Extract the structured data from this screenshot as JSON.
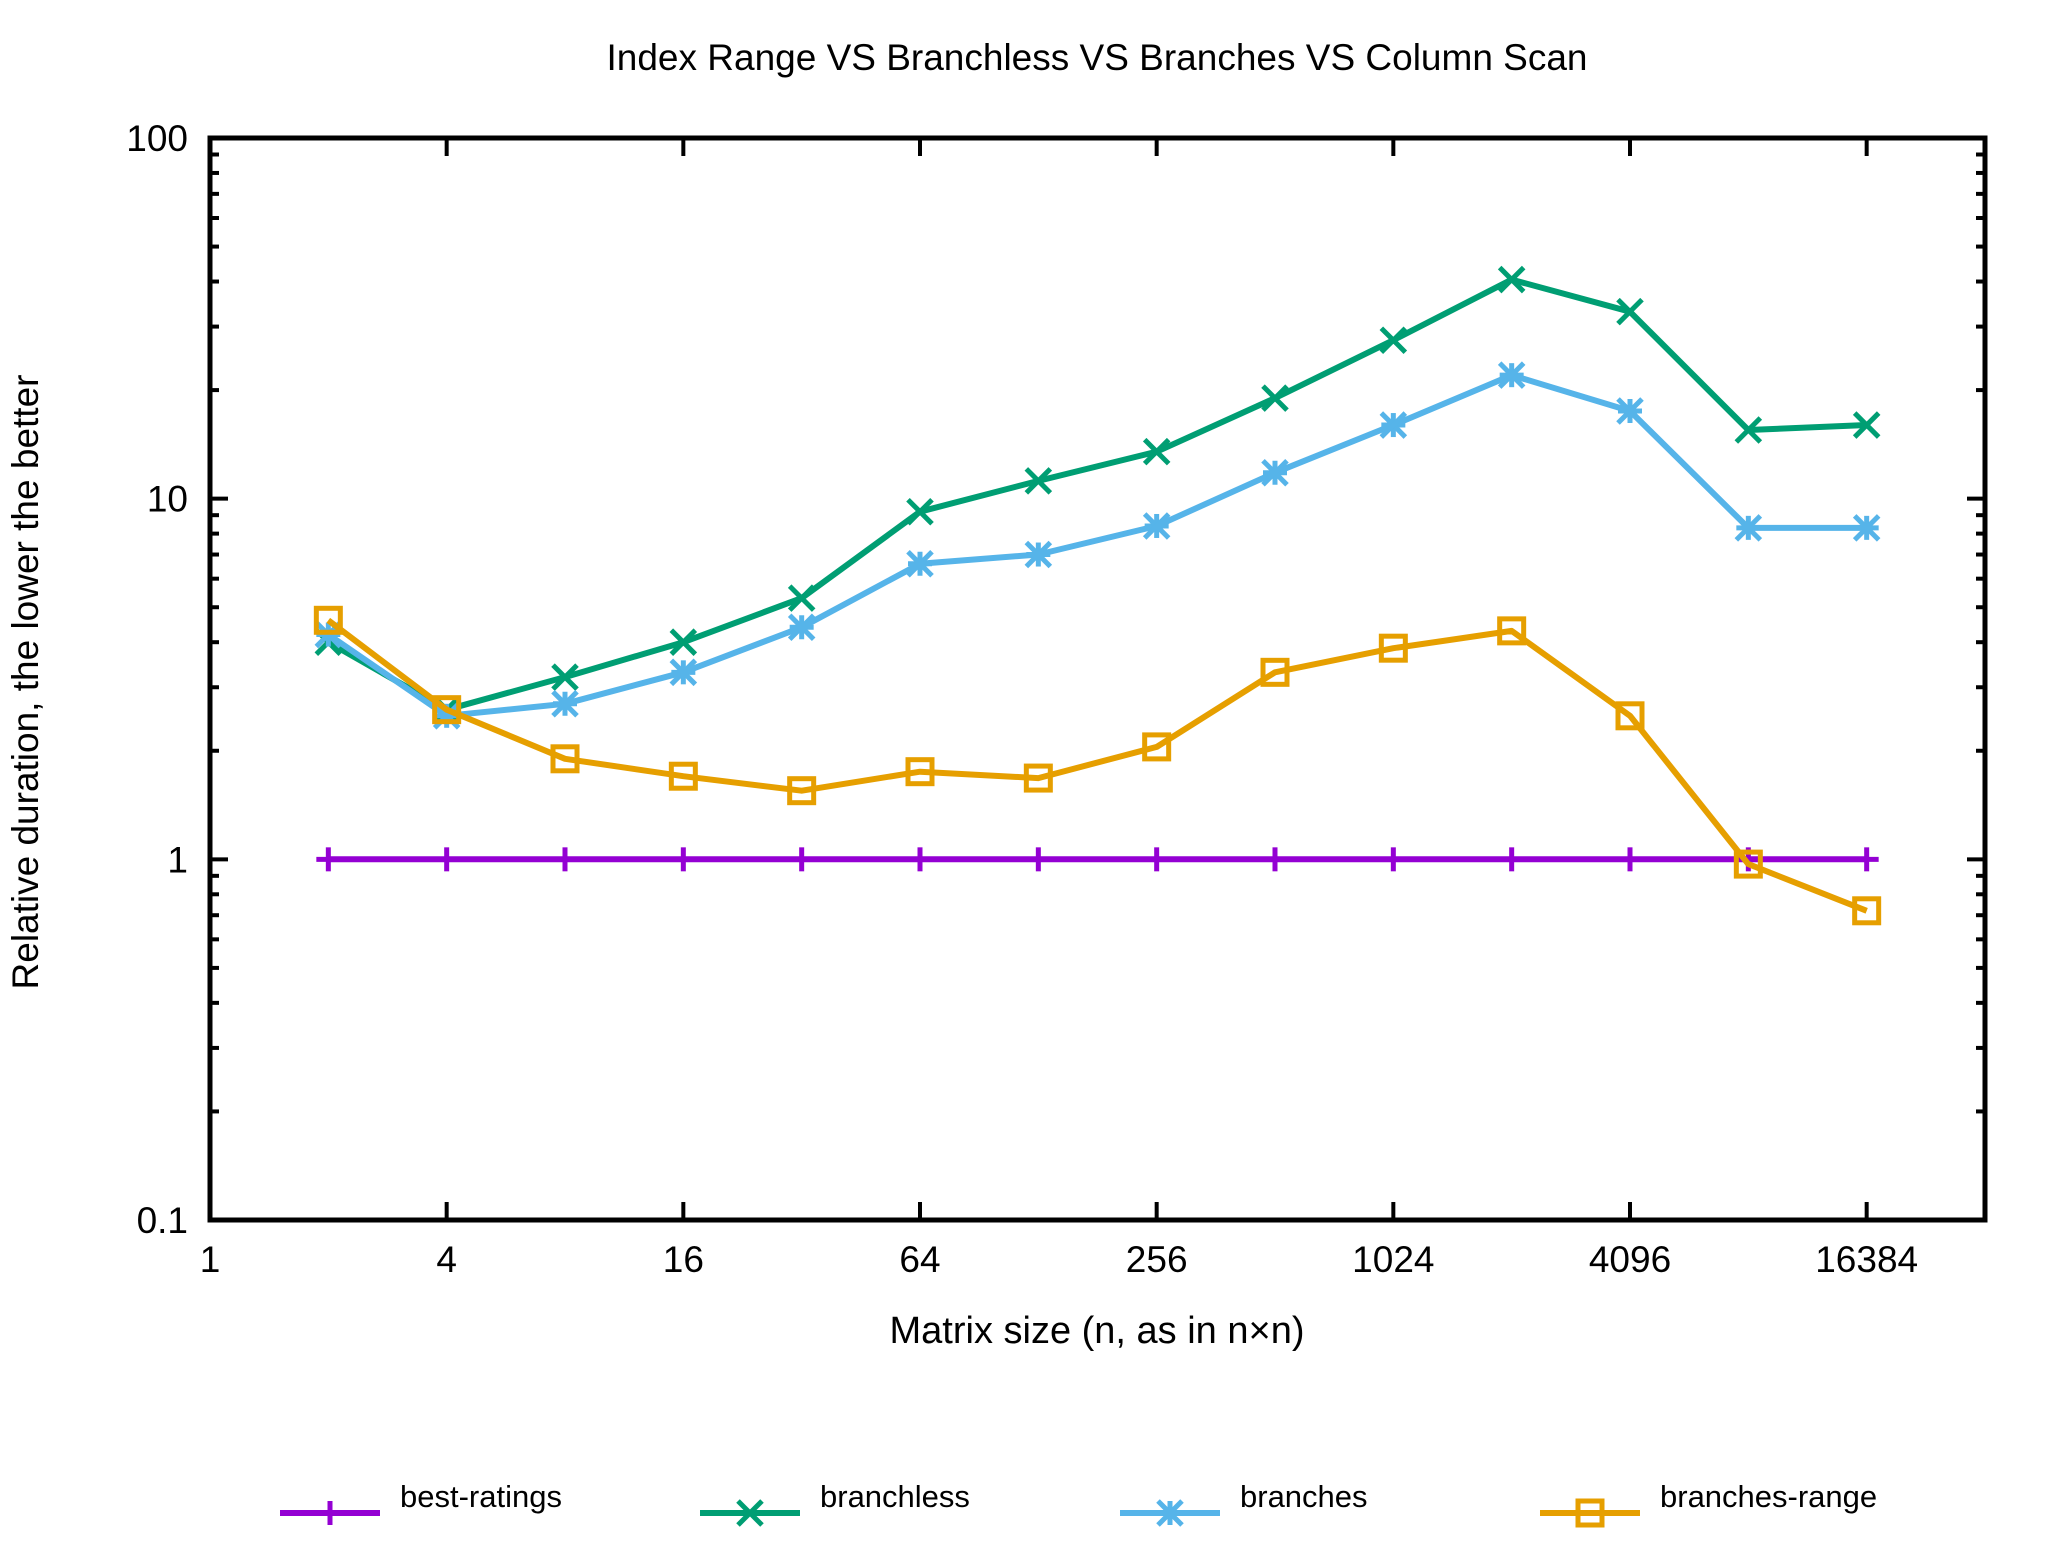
{
  "chart_data": {
    "type": "line",
    "title": "Index Range VS Branchless VS Branches VS Column Scan",
    "xlabel": "Matrix size (n, as in n×n)",
    "ylabel": "Relative duration, the lower the better",
    "x_scale": "log2",
    "y_scale": "log10",
    "xlim": [
      1,
      32768
    ],
    "ylim": [
      0.1,
      100
    ],
    "x_ticks": [
      1,
      4,
      16,
      64,
      256,
      1024,
      4096,
      16384
    ],
    "x_tick_labels": [
      "1",
      "4",
      "16",
      "64",
      "256",
      "1024",
      "4096",
      "16384"
    ],
    "y_ticks": [
      0.1,
      1,
      10,
      100
    ],
    "y_tick_labels": [
      "0.1",
      "1",
      "10",
      "100"
    ],
    "grid": false,
    "legend_position": "bottom",
    "x": [
      2,
      4,
      8,
      16,
      32,
      64,
      128,
      256,
      512,
      1024,
      2048,
      4096,
      8192,
      16384
    ],
    "series": [
      {
        "name": "best-ratings",
        "color": "#9400d3",
        "marker": "plus",
        "values": [
          1,
          1,
          1,
          1,
          1,
          1,
          1,
          1,
          1,
          1,
          1,
          1,
          1,
          1
        ]
      },
      {
        "name": "branchless",
        "color": "#009e73",
        "marker": "cross",
        "values": [
          4.0,
          2.6,
          3.2,
          4.0,
          5.3,
          9.2,
          11.2,
          13.5,
          19.0,
          27.5,
          40.5,
          33.0,
          15.5,
          16.0
        ]
      },
      {
        "name": "branches",
        "color": "#56b4e9",
        "marker": "asterisk",
        "values": [
          4.2,
          2.5,
          2.7,
          3.3,
          4.4,
          6.6,
          7.0,
          8.4,
          11.8,
          16.0,
          22.0,
          17.5,
          8.3,
          8.3
        ]
      },
      {
        "name": "branches-range",
        "color": "#e69f00",
        "marker": "open-square",
        "values": [
          4.6,
          2.6,
          1.9,
          1.7,
          1.55,
          1.75,
          1.68,
          2.05,
          3.3,
          3.85,
          4.3,
          2.5,
          0.97,
          0.72
        ]
      }
    ]
  }
}
